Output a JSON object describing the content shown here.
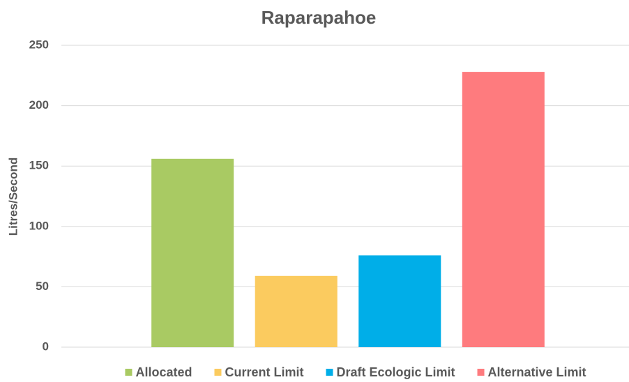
{
  "chart_data": {
    "type": "bar",
    "title": "Raparapahoe",
    "y_label": "Litres/Second",
    "categories": [
      null
    ],
    "series": [
      {
        "name": "Allocated",
        "color": "#a9ca63",
        "values": [
          156
        ]
      },
      {
        "name": "Current Limit",
        "color": "#fbcb5f",
        "values": [
          59
        ]
      },
      {
        "name": "Draft Ecologic Limit",
        "color": "#00aee8",
        "values": [
          76
        ]
      },
      {
        "name": "Alternative Limit",
        "color": "#fe7b7e",
        "values": [
          228
        ]
      }
    ],
    "ylim": [
      0,
      250
    ],
    "yticks": [
      0,
      50,
      100,
      150,
      200,
      250
    ],
    "grid": true,
    "legend": "bottom"
  }
}
